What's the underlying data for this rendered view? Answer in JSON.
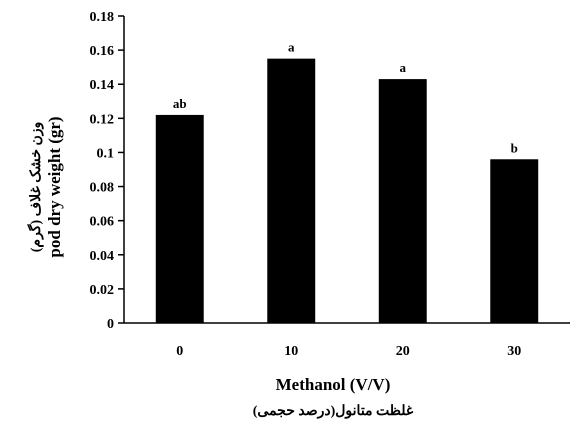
{
  "chart_data": {
    "type": "bar",
    "categories": [
      "0",
      "10",
      "20",
      "30"
    ],
    "values": [
      0.122,
      0.155,
      0.143,
      0.096
    ],
    "data_labels": [
      "ab",
      "a",
      "a",
      "b"
    ],
    "ylabel": "pod dry weight (gr)",
    "ylabel_fa": "وزن خشک غلاف (گرم)",
    "xlabel": "Methanol (V/V)",
    "xlabel_fa": "غلظت متانول(درصد حجمی)",
    "ylim": [
      0,
      0.18
    ],
    "y_ticks": [
      "0",
      "0.02",
      "0.04",
      "0.06",
      "0.08",
      "0.1",
      "0.12",
      "0.14",
      "0.16",
      "0.18"
    ],
    "grid": false,
    "bar_color": "#000000"
  }
}
